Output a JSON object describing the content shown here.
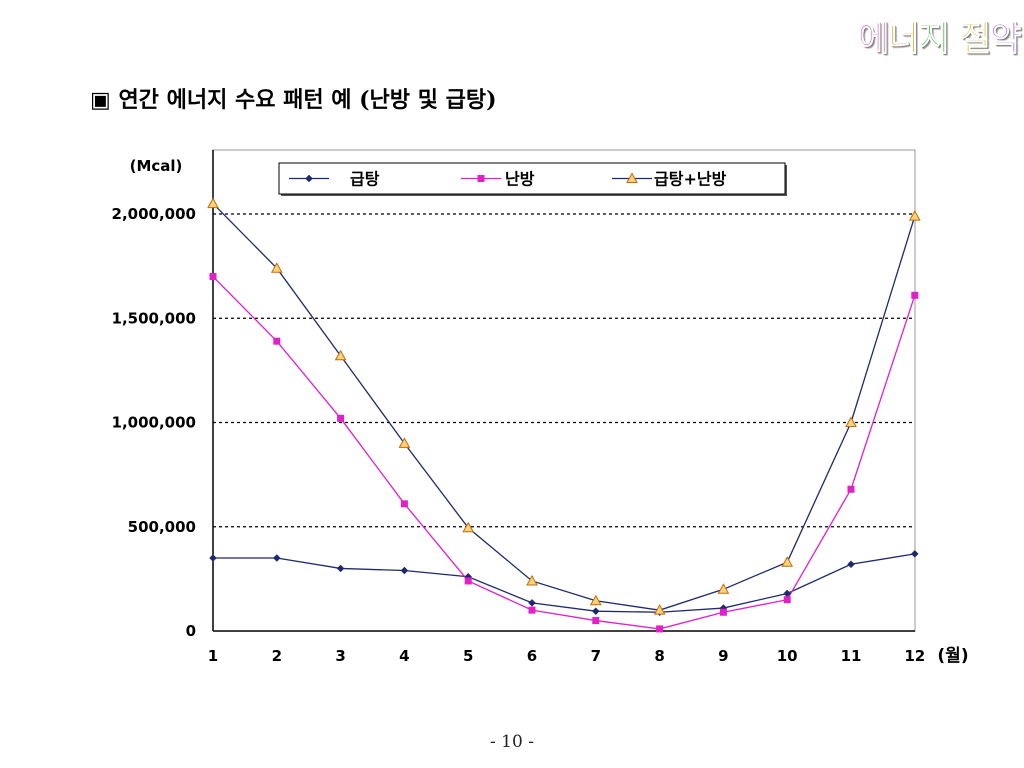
{
  "brand": {
    "chars": [
      {
        "t": "에",
        "color": "#e83aa6"
      },
      {
        "t": "너",
        "color": "#e8960e"
      },
      {
        "t": "지",
        "color": "#26b826"
      },
      {
        "t": " ",
        "color": "#ffffff"
      },
      {
        "t": "절",
        "color": "#d8b800"
      },
      {
        "t": "약",
        "color": "#9b4fd6"
      }
    ]
  },
  "heading": "▣ 연간 에너지 수요 패턴 예 (난방 및 급탕)",
  "page_number": "- 10 -",
  "chart_data": {
    "type": "line",
    "title": "",
    "ylabel": "(Mcal)",
    "xlabel": "(월)",
    "x": [
      1,
      2,
      3,
      4,
      5,
      6,
      7,
      8,
      9,
      10,
      11,
      12
    ],
    "ylim": [
      0,
      2000000
    ],
    "yticks": [
      {
        "v": 0,
        "label": "0"
      },
      {
        "v": 500000,
        "label": "500,000"
      },
      {
        "v": 1000000,
        "label": "1,000,000"
      },
      {
        "v": 1500000,
        "label": "1,500,000"
      },
      {
        "v": 2000000,
        "label": "2,000,000"
      }
    ],
    "grid": "dashed horizontal",
    "legend": "top",
    "series": [
      {
        "name": "급탕",
        "color": "#1f2a6e",
        "marker": "diamond",
        "values": [
          350000,
          350000,
          300000,
          290000,
          260000,
          135000,
          95000,
          90000,
          110000,
          180000,
          320000,
          370000
        ]
      },
      {
        "name": "난방",
        "color": "#e020c8",
        "marker": "square",
        "values": [
          1700000,
          1390000,
          1020000,
          610000,
          240000,
          100000,
          50000,
          10000,
          90000,
          150000,
          680000,
          1610000
        ]
      },
      {
        "name": "급탕+난방",
        "color": "#1f2a6e",
        "marker": "triangle",
        "values": [
          2050000,
          1740000,
          1320000,
          900000,
          495000,
          240000,
          145000,
          100000,
          200000,
          330000,
          1000000,
          1990000
        ]
      }
    ]
  }
}
